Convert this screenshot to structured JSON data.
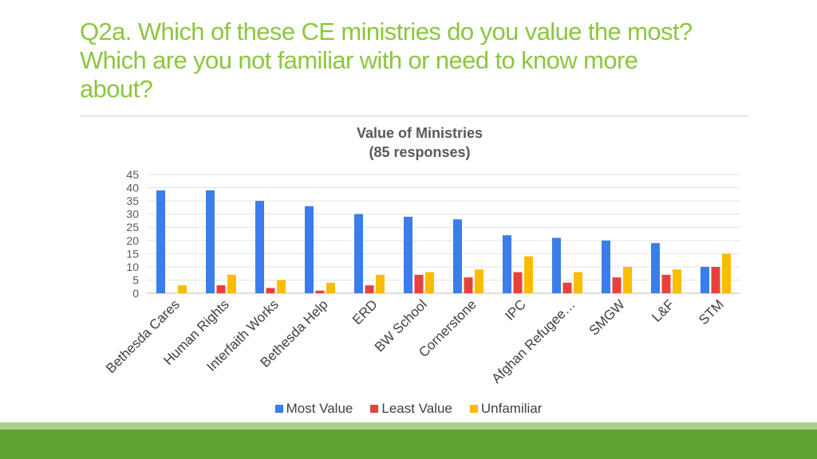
{
  "slide": {
    "title_lines": [
      "Q2a. Which of these CE ministries do you value the most?",
      "Which are you not familiar with or need to know more",
      "about?"
    ]
  },
  "chart_data": {
    "type": "bar",
    "title": "Value of Ministries",
    "subtitle": "(85 responses)",
    "categories": [
      "Bethesda Cares",
      "Human Rights",
      "Interfaith Works",
      "Bethesda Help",
      "ERD",
      "BW School",
      "Cornerstone",
      "IPC",
      "Afghan Refugee…",
      "SMGW",
      "L&F",
      "STM"
    ],
    "series": [
      {
        "name": "Most Value",
        "color": "#3b7de9",
        "values": [
          39,
          39,
          35,
          33,
          30,
          29,
          28,
          22,
          21,
          20,
          19,
          10
        ]
      },
      {
        "name": "Least Value",
        "color": "#e8413b",
        "values": [
          0,
          3,
          2,
          1,
          3,
          7,
          6,
          8,
          4,
          6,
          7,
          10
        ]
      },
      {
        "name": "Unfamiliar",
        "color": "#fbbc04",
        "values": [
          3,
          7,
          5,
          4,
          7,
          8,
          9,
          14,
          8,
          10,
          9,
          15
        ]
      }
    ],
    "yticks": [
      0,
      5,
      10,
      15,
      20,
      25,
      30,
      35,
      40,
      45
    ],
    "ylim": [
      0,
      45
    ],
    "xlabel": "",
    "ylabel": "",
    "grid": true,
    "legend": "bottom"
  }
}
